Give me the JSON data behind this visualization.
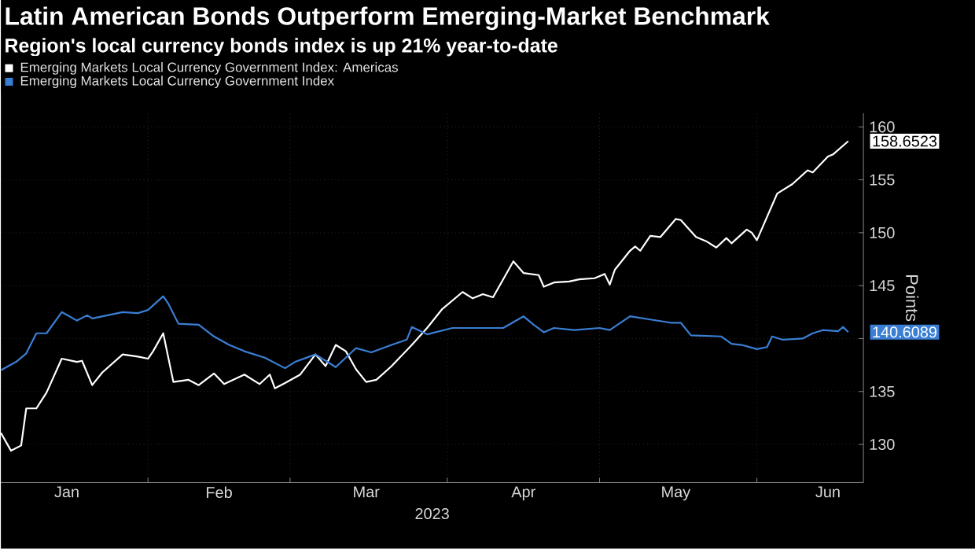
{
  "chart_data": {
    "type": "line",
    "title": "Latin American Bonds Outperform Emerging-Market Benchmark",
    "subtitle": "Region's local currency bonds index is up 21% year-to-date",
    "xlabel": "2023",
    "ylabel": "Points",
    "xlim": [
      "2023-01-03",
      "2023-06-22"
    ],
    "xticks": [
      {
        "value": "2023-02-01",
        "label": null
      },
      {
        "value": "2023-03-01",
        "label": null
      },
      {
        "value": "2023-04-01",
        "label": null
      },
      {
        "value": "2023-05-01",
        "label": null
      },
      {
        "value": "2023-06-01",
        "label": null
      },
      {
        "value": "2023-01-16",
        "label": "Jan"
      },
      {
        "value": "2023-02-15",
        "label": "Feb"
      },
      {
        "value": "2023-03-16",
        "label": "Mar"
      },
      {
        "value": "2023-04-16",
        "label": "Apr"
      },
      {
        "value": "2023-05-16",
        "label": "May"
      },
      {
        "value": "2023-06-15",
        "label": "Jun"
      }
    ],
    "ylim": [
      126.4,
      161.3
    ],
    "yticks": [
      130,
      135,
      {
        "value": 140,
        "label": null
      },
      145,
      150,
      155,
      160
    ],
    "grid": true,
    "legend": "top left",
    "marker": "none",
    "annotations": [
      {
        "text": "158.6523",
        "x": "2023-06-19",
        "y": 158.6523
      },
      {
        "text": "140.6089",
        "x": "2023-06-19",
        "y": 140.6089
      }
    ],
    "series": [
      {
        "name": "Emerging Markets Local Currency Government Index: Americas",
        "color": "#ffffff",
        "x": [
          "2023-01-03",
          "2023-01-05",
          "2023-01-07",
          "2023-01-08",
          "2023-01-10",
          "2023-01-12",
          "2023-01-15",
          "2023-01-18",
          "2023-01-19",
          "2023-01-21",
          "2023-01-23",
          "2023-01-27",
          "2023-01-30",
          "2023-02-01",
          "2023-02-02",
          "2023-02-04",
          "2023-02-06",
          "2023-02-09",
          "2023-02-11",
          "2023-02-14",
          "2023-02-16",
          "2023-02-20",
          "2023-02-23",
          "2023-02-25",
          "2023-02-26",
          "2023-02-28",
          "2023-03-03",
          "2023-03-06",
          "2023-03-08",
          "2023-03-10",
          "2023-03-12",
          "2023-03-14",
          "2023-03-16",
          "2023-03-18",
          "2023-03-21",
          "2023-03-25",
          "2023-03-28",
          "2023-03-31",
          "2023-04-04",
          "2023-04-06",
          "2023-04-08",
          "2023-04-10",
          "2023-04-14",
          "2023-04-16",
          "2023-04-19",
          "2023-04-20",
          "2023-04-22",
          "2023-04-25",
          "2023-04-27",
          "2023-04-30",
          "2023-05-02",
          "2023-05-03",
          "2023-05-04",
          "2023-05-07",
          "2023-05-08",
          "2023-05-09",
          "2023-05-11",
          "2023-05-13",
          "2023-05-16",
          "2023-05-17",
          "2023-05-20",
          "2023-05-22",
          "2023-05-24",
          "2023-05-26",
          "2023-05-27",
          "2023-05-30",
          "2023-05-31",
          "2023-06-01",
          "2023-06-05",
          "2023-06-08",
          "2023-06-11",
          "2023-06-12",
          "2023-06-15",
          "2023-06-16",
          "2023-06-19"
        ],
        "values": [
          131.1,
          129.4,
          129.9,
          133.4,
          133.4,
          134.9,
          138.1,
          137.8,
          137.9,
          135.6,
          136.8,
          138.5,
          138.3,
          138.1,
          138.8,
          140.5,
          135.9,
          136.1,
          135.6,
          136.7,
          135.7,
          136.6,
          135.7,
          136.6,
          135.3,
          135.8,
          136.6,
          138.5,
          137.4,
          139.4,
          138.8,
          137.1,
          135.9,
          136.1,
          137.4,
          139.4,
          141.0,
          142.8,
          144.4,
          143.8,
          144.2,
          143.9,
          147.3,
          146.2,
          146.0,
          144.9,
          145.3,
          145.4,
          145.6,
          145.7,
          146.1,
          145.1,
          146.5,
          148.3,
          148.7,
          148.3,
          149.7,
          149.6,
          151.3,
          151.2,
          149.6,
          149.2,
          148.6,
          149.5,
          149.0,
          150.3,
          150.0,
          149.3,
          153.7,
          154.6,
          155.9,
          155.7,
          157.2,
          157.4,
          158.6523
        ]
      },
      {
        "name": "Emerging Markets Local Currency Government Index",
        "color": "#3a7fd5",
        "x": [
          "2023-01-03",
          "2023-01-06",
          "2023-01-08",
          "2023-01-10",
          "2023-01-12",
          "2023-01-15",
          "2023-01-18",
          "2023-01-20",
          "2023-01-21",
          "2023-01-27",
          "2023-01-30",
          "2023-02-01",
          "2023-02-04",
          "2023-02-05",
          "2023-02-07",
          "2023-02-11",
          "2023-02-14",
          "2023-02-17",
          "2023-02-20",
          "2023-02-24",
          "2023-02-28",
          "2023-03-02",
          "2023-03-06",
          "2023-03-10",
          "2023-03-14",
          "2023-03-17",
          "2023-03-21",
          "2023-03-24",
          "2023-03-25",
          "2023-03-28",
          "2023-04-02",
          "2023-04-06",
          "2023-04-12",
          "2023-04-16",
          "2023-04-18",
          "2023-04-20",
          "2023-04-22",
          "2023-04-26",
          "2023-05-01",
          "2023-05-03",
          "2023-05-07",
          "2023-05-11",
          "2023-05-15",
          "2023-05-17",
          "2023-05-19",
          "2023-05-25",
          "2023-05-27",
          "2023-05-29",
          "2023-06-01",
          "2023-06-03",
          "2023-06-04",
          "2023-06-06",
          "2023-06-10",
          "2023-06-12",
          "2023-06-14",
          "2023-06-17",
          "2023-06-18",
          "2023-06-19"
        ],
        "values": [
          137.0,
          137.8,
          138.6,
          140.5,
          140.5,
          142.5,
          141.7,
          142.2,
          141.9,
          142.5,
          142.4,
          142.7,
          144.0,
          143.3,
          141.4,
          141.3,
          140.2,
          139.4,
          138.8,
          138.2,
          137.2,
          137.8,
          138.5,
          137.3,
          139.1,
          138.7,
          139.4,
          139.9,
          141.1,
          140.4,
          141.0,
          141.0,
          141.0,
          142.1,
          141.3,
          140.6,
          141.0,
          140.8,
          141.0,
          140.8,
          142.1,
          141.8,
          141.5,
          141.5,
          140.3,
          140.2,
          139.5,
          139.4,
          139.0,
          139.2,
          140.2,
          139.9,
          140.0,
          140.5,
          140.8,
          140.7,
          141.1,
          140.6089
        ]
      }
    ]
  }
}
